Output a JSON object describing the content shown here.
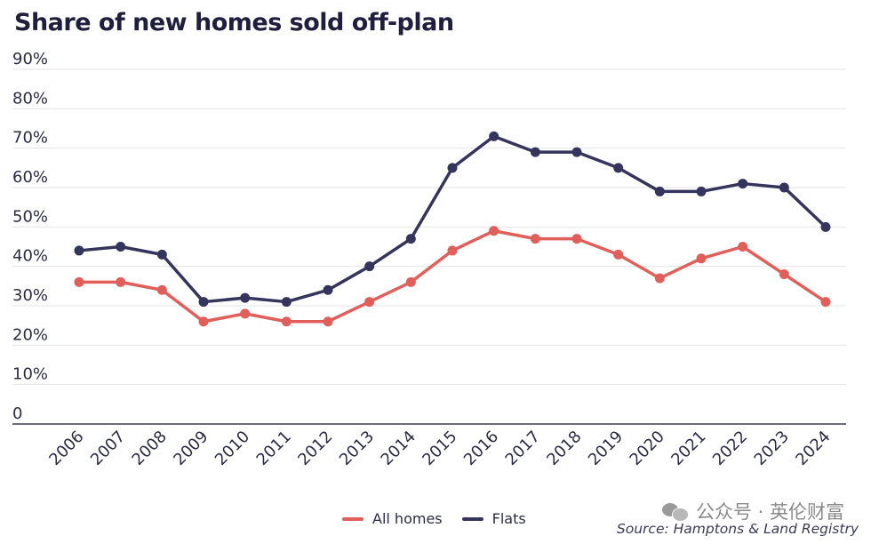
{
  "chart_data": {
    "type": "line",
    "title": "Share of new homes sold off-plan",
    "xlabel": "",
    "ylabel": "",
    "x": [
      "2006",
      "2007",
      "2008",
      "2009",
      "2010",
      "2011",
      "2012",
      "2013",
      "2014",
      "2015",
      "2016",
      "2017",
      "2018",
      "2019",
      "2020",
      "2021",
      "2022",
      "2023",
      "2024"
    ],
    "series": [
      {
        "name": "All homes",
        "color": "#e05f5a",
        "values": [
          36,
          36,
          34,
          26,
          28,
          26,
          26,
          31,
          36,
          44,
          49,
          47,
          47,
          43,
          37,
          42,
          45,
          38,
          31
        ]
      },
      {
        "name": "Flats",
        "color": "#35345c",
        "values": [
          44,
          45,
          43,
          31,
          32,
          31,
          34,
          40,
          47,
          65,
          73,
          69,
          69,
          65,
          59,
          59,
          61,
          60,
          50
        ]
      }
    ],
    "ylim": [
      0,
      90
    ],
    "yticks": [
      0,
      10,
      20,
      30,
      40,
      50,
      60,
      70,
      80,
      90
    ],
    "ytick_labels": [
      "0",
      "10%",
      "20%",
      "30%",
      "40%",
      "50%",
      "60%",
      "70%",
      "80%",
      "90%"
    ],
    "grid": true,
    "legend_position": "bottom-center"
  },
  "legend": {
    "all_homes": "All homes",
    "flats": "Flats"
  },
  "watermark": "公众号 · 英伦财富",
  "source": "Source: Hamptons & Land Registry"
}
